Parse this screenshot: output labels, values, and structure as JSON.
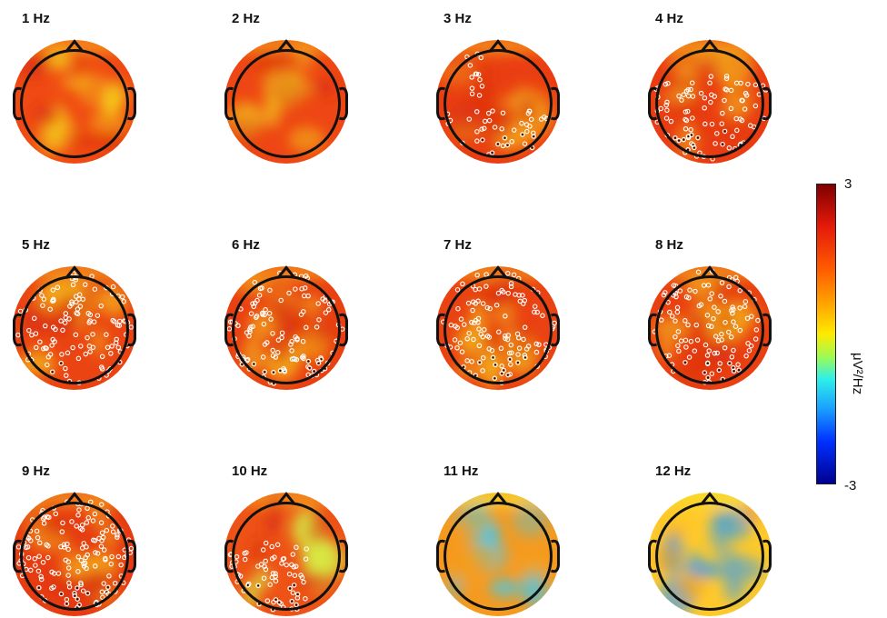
{
  "panels": [
    {
      "label": "1 Hz",
      "base": "#f04a14",
      "hot": "#f5d31a",
      "n_sig": 0,
      "region": "none"
    },
    {
      "label": "2 Hz",
      "base": "#ee4614",
      "hot": "#f3cf1a",
      "n_sig": 0,
      "region": "none"
    },
    {
      "label": "3 Hz",
      "base": "#ea3e12",
      "hot": "#f2a21a",
      "n_sig": 55,
      "region": "posterior"
    },
    {
      "label": "4 Hz",
      "base": "#e93c12",
      "hot": "#f2a21a",
      "n_sig": 95,
      "region": "posterior-central"
    },
    {
      "label": "5 Hz",
      "base": "#ea4413",
      "hot": "#f5c01a",
      "n_sig": 120,
      "region": "broad"
    },
    {
      "label": "6 Hz",
      "base": "#e94012",
      "hot": "#f3b01a",
      "n_sig": 120,
      "region": "broad"
    },
    {
      "label": "7 Hz",
      "base": "#ea4213",
      "hot": "#f3b81a",
      "n_sig": 120,
      "region": "broad"
    },
    {
      "label": "8 Hz",
      "base": "#e94012",
      "hot": "#f3b01a",
      "n_sig": 115,
      "region": "broad"
    },
    {
      "label": "9 Hz",
      "base": "#e63c12",
      "hot": "#f2a21a",
      "n_sig": 150,
      "region": "broad"
    },
    {
      "label": "10 Hz",
      "base": "#ee5216",
      "hot": "#d7ee44",
      "n_sig": 70,
      "region": "left-posterior"
    },
    {
      "label": "11 Hz",
      "base": "#f59a1e",
      "hot": "#3ec8f0",
      "n_sig": 0,
      "region": "none"
    },
    {
      "label": "12 Hz",
      "base": "#ffc92a",
      "hot": "#2e9bf5",
      "n_sig": 0,
      "region": "none"
    }
  ],
  "colorbar": {
    "max_label": "3",
    "min_label": "-3",
    "unit_label": "μV²/Hz",
    "colormap": "jet"
  }
}
